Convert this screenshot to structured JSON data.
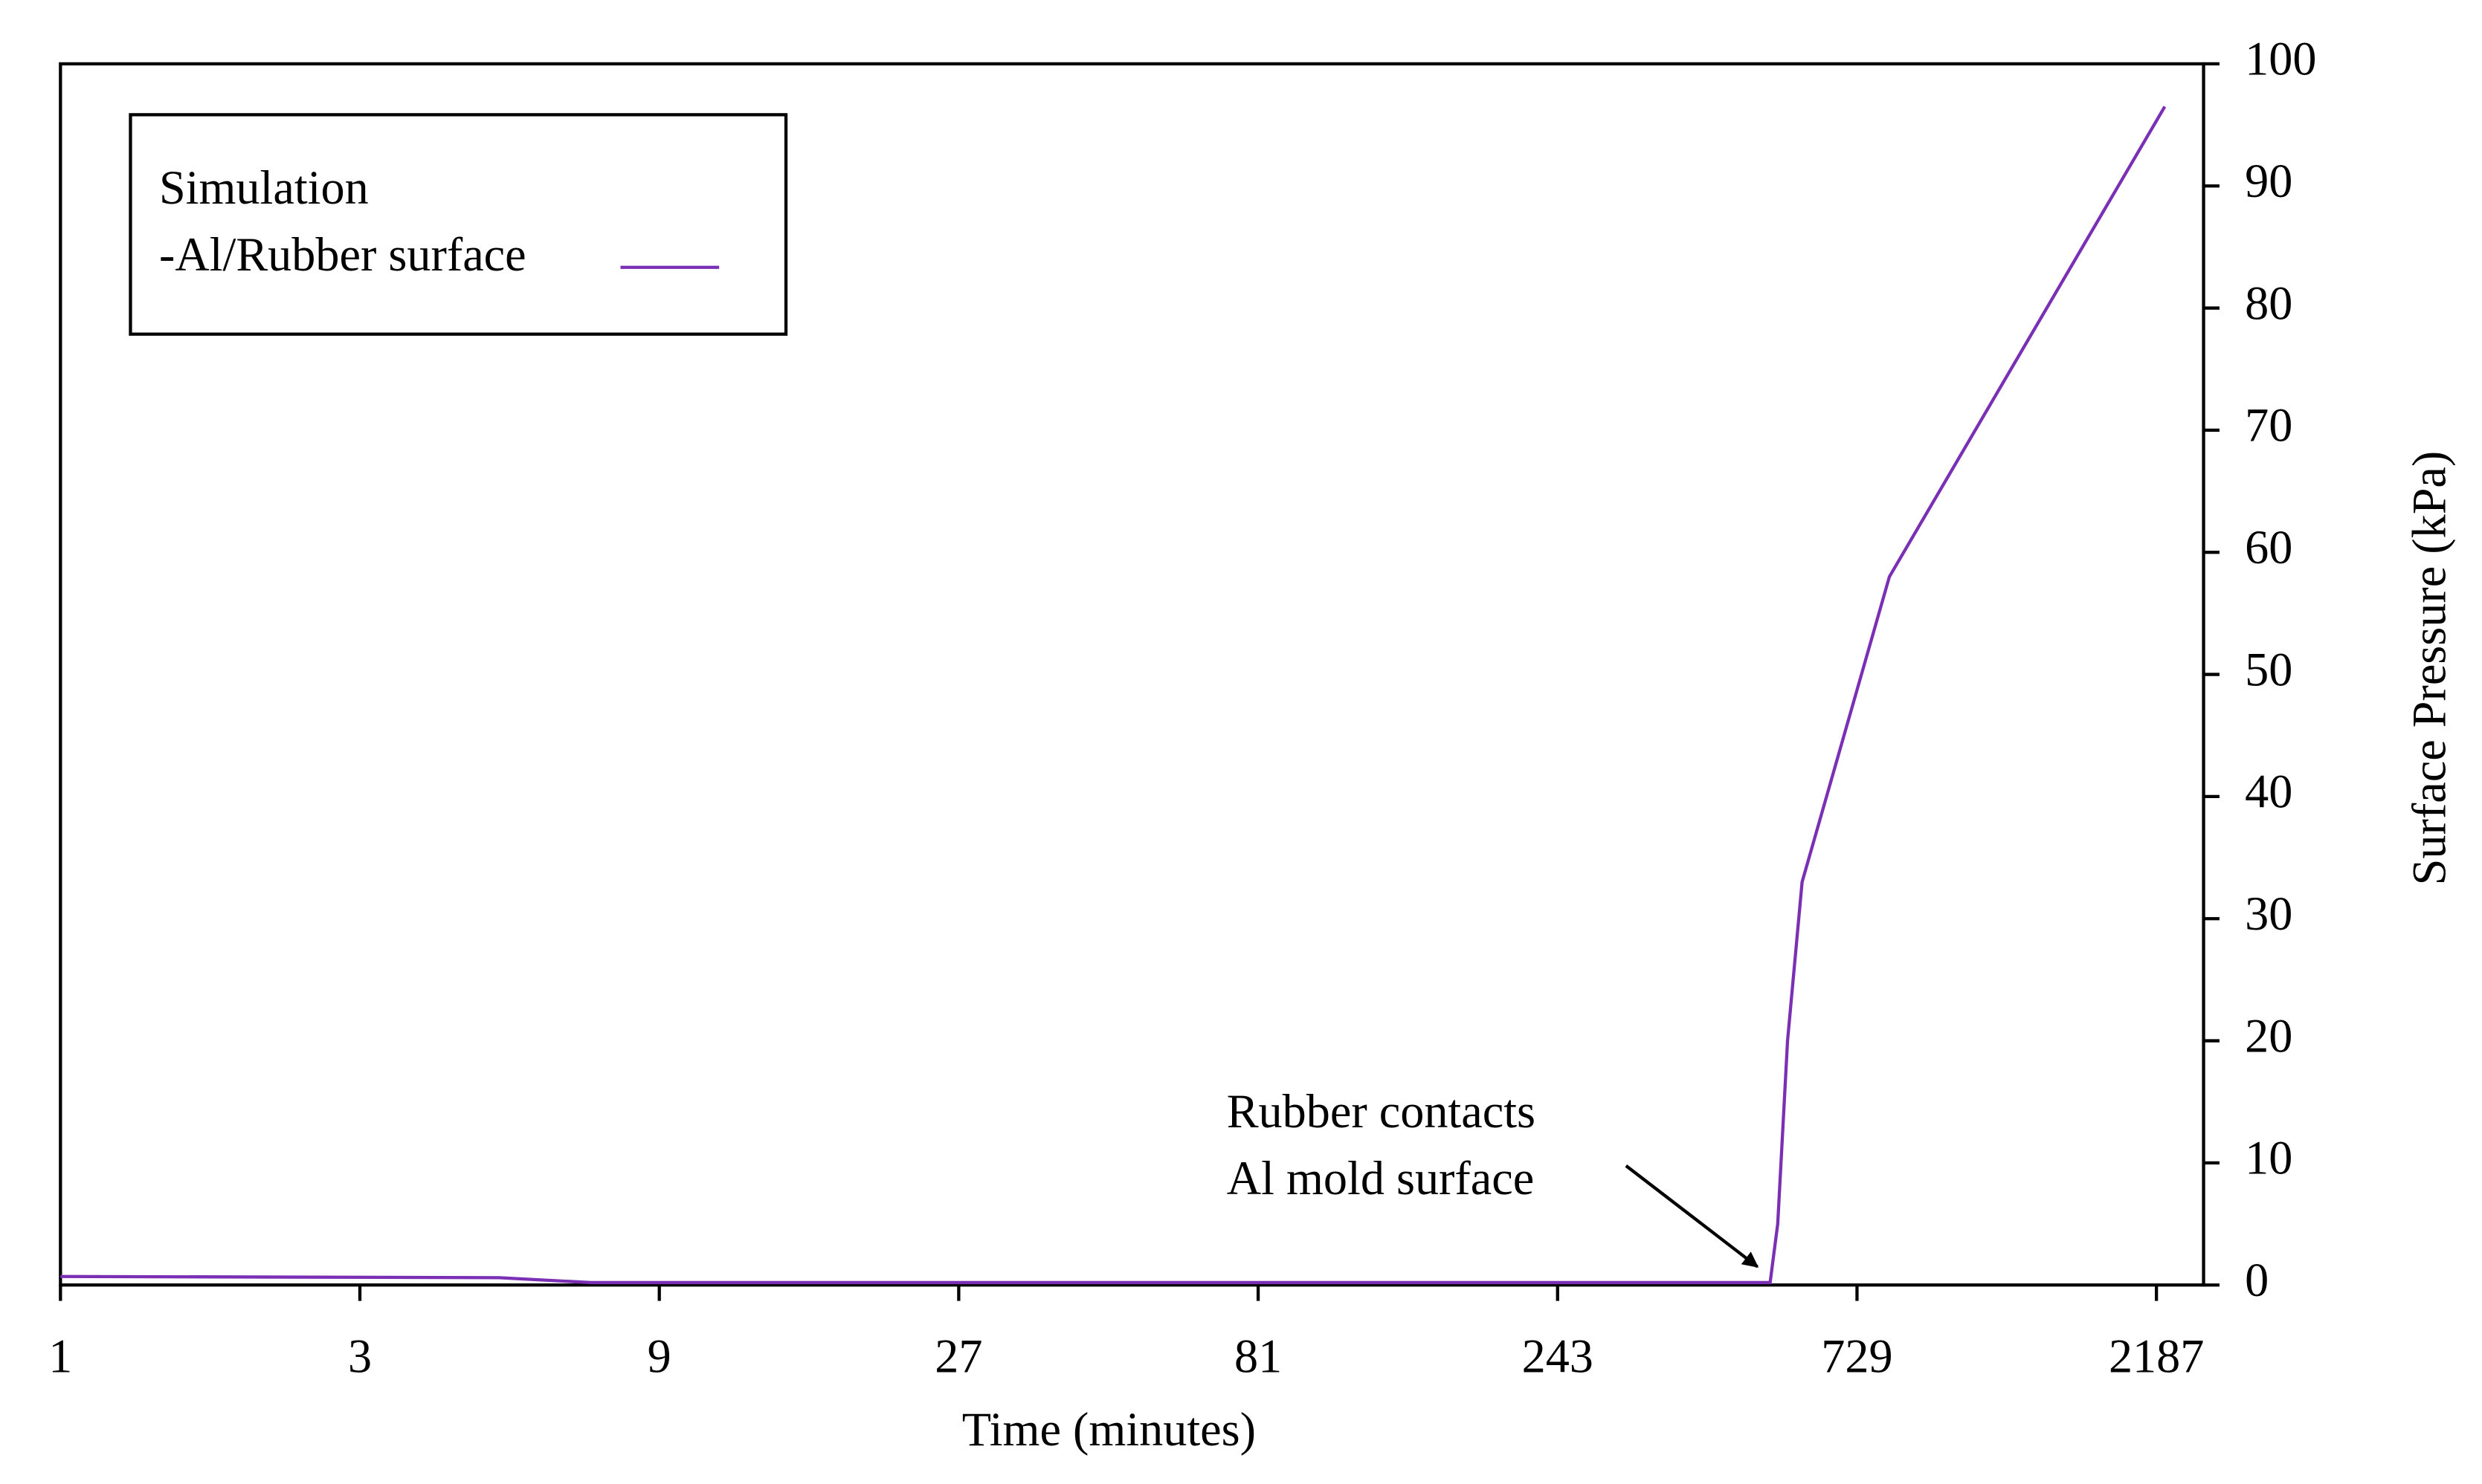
{
  "chart_data": {
    "type": "line",
    "x_label": "Time (minutes)",
    "y_label": "Surface Pressure (kPa)",
    "legend_title": "Simulation",
    "legend_position": "upper left",
    "x_scale": "log",
    "x": [
      1,
      5,
      7,
      530,
      545,
      565,
      596,
      821,
      2255
    ],
    "series": [
      {
        "name": "-Al/Rubber surface",
        "color": "#7a2fb5",
        "values": [
          0.7,
          0.6,
          0.2,
          0.2,
          5,
          20,
          33,
          58,
          96.5
        ]
      }
    ],
    "xlim": [
      1,
      2600
    ],
    "xticks": [
      1,
      3,
      9,
      27,
      81,
      243,
      729,
      2187
    ],
    "ylim": [
      0,
      100
    ],
    "yticks": [
      0,
      10,
      20,
      30,
      40,
      50,
      60,
      70,
      80,
      90,
      100
    ],
    "annotation": {
      "lines": [
        "Rubber contacts",
        "Al mold surface"
      ],
      "x": 530,
      "y": 0.2
    }
  }
}
